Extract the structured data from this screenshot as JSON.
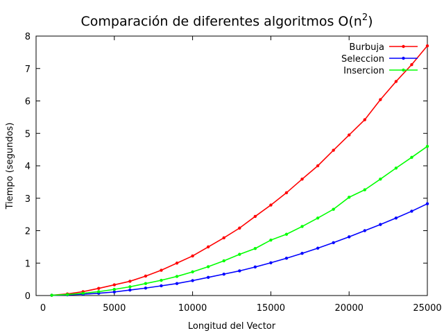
{
  "chart_data": {
    "type": "line",
    "title": "Comparación de diferentes algoritmos O(n",
    "title_sup": "2",
    "title_close": ")",
    "xlabel": "Longitud del Vector",
    "ylabel": "Tiempo (segundos)",
    "xlim": [
      0,
      25000
    ],
    "ylim": [
      0,
      8
    ],
    "xticks": [
      0,
      5000,
      10000,
      15000,
      20000,
      25000
    ],
    "yticks": [
      0,
      1,
      2,
      3,
      4,
      5,
      6,
      7,
      8
    ],
    "grid": false,
    "legend_position": "top-right",
    "x": [
      1000,
      2000,
      3000,
      4000,
      5000,
      6000,
      7000,
      8000,
      9000,
      10000,
      11000,
      12000,
      13000,
      14000,
      15000,
      16000,
      17000,
      18000,
      19000,
      20000,
      21000,
      22000,
      23000,
      24000,
      25000
    ],
    "series": [
      {
        "name": "Burbuja",
        "color": "#ff0000",
        "values": [
          0.01,
          0.05,
          0.12,
          0.22,
          0.33,
          0.44,
          0.6,
          0.78,
          1.0,
          1.22,
          1.5,
          1.78,
          2.08,
          2.44,
          2.79,
          3.17,
          3.59,
          4.0,
          4.48,
          4.95,
          5.42,
          6.04,
          6.6,
          7.12,
          7.7
        ]
      },
      {
        "name": "Seleccion",
        "color": "#0000ff",
        "values": [
          0.01,
          0.02,
          0.04,
          0.07,
          0.11,
          0.17,
          0.23,
          0.3,
          0.37,
          0.46,
          0.56,
          0.66,
          0.76,
          0.88,
          1.01,
          1.15,
          1.3,
          1.46,
          1.63,
          1.81,
          2.0,
          2.19,
          2.39,
          2.6,
          2.83
        ]
      },
      {
        "name": "Insercion",
        "color": "#00ff00",
        "values": [
          0.01,
          0.03,
          0.07,
          0.12,
          0.19,
          0.27,
          0.37,
          0.47,
          0.59,
          0.73,
          0.89,
          1.07,
          1.27,
          1.45,
          1.71,
          1.89,
          2.13,
          2.39,
          2.66,
          3.03,
          3.26,
          3.59,
          3.93,
          4.26,
          4.6
        ]
      }
    ]
  }
}
